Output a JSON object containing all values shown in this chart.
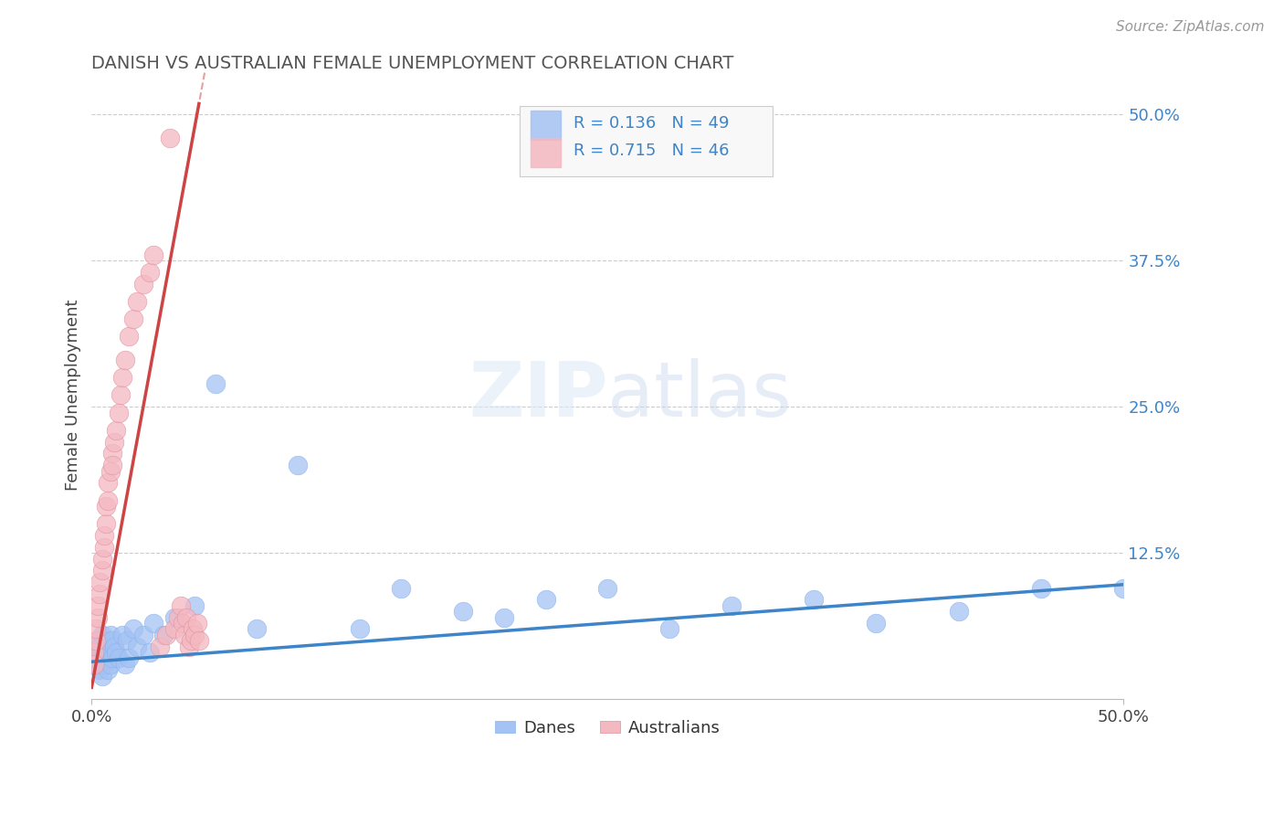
{
  "title": "DANISH VS AUSTRALIAN FEMALE UNEMPLOYMENT CORRELATION CHART",
  "source_text": "Source: ZipAtlas.com",
  "ylabel": "Female Unemployment",
  "right_yticklabels": [
    "",
    "12.5%",
    "25.0%",
    "37.5%",
    "50.0%"
  ],
  "right_ytick_vals": [
    0.0,
    0.125,
    0.25,
    0.375,
    0.5
  ],
  "legend_r1": "R = 0.136",
  "legend_n1": "N = 49",
  "legend_r2": "R = 0.715",
  "legend_n2": "N = 46",
  "blue_color": "#a4c2f4",
  "pink_color": "#f4b8c1",
  "blue_line_color": "#3d85c8",
  "pink_line_color": "#cc4444",
  "legend_text_color": "#3d85c8",
  "title_color": "#555555",
  "background_color": "#ffffff",
  "danes_x": [
    0.001,
    0.002,
    0.003,
    0.003,
    0.004,
    0.004,
    0.005,
    0.005,
    0.006,
    0.006,
    0.007,
    0.007,
    0.008,
    0.008,
    0.009,
    0.009,
    0.01,
    0.01,
    0.011,
    0.012,
    0.013,
    0.015,
    0.016,
    0.017,
    0.018,
    0.02,
    0.022,
    0.025,
    0.028,
    0.03,
    0.035,
    0.04,
    0.05,
    0.06,
    0.08,
    0.1,
    0.13,
    0.15,
    0.18,
    0.2,
    0.22,
    0.25,
    0.28,
    0.31,
    0.35,
    0.38,
    0.42,
    0.46,
    0.5
  ],
  "danes_y": [
    0.04,
    0.035,
    0.05,
    0.03,
    0.045,
    0.025,
    0.055,
    0.02,
    0.04,
    0.03,
    0.05,
    0.035,
    0.045,
    0.025,
    0.055,
    0.03,
    0.05,
    0.035,
    0.045,
    0.04,
    0.035,
    0.055,
    0.03,
    0.05,
    0.035,
    0.06,
    0.045,
    0.055,
    0.04,
    0.065,
    0.055,
    0.07,
    0.08,
    0.27,
    0.06,
    0.2,
    0.06,
    0.095,
    0.075,
    0.07,
    0.085,
    0.095,
    0.06,
    0.08,
    0.085,
    0.065,
    0.075,
    0.095,
    0.095
  ],
  "australians_x": [
    0.001,
    0.001,
    0.002,
    0.002,
    0.003,
    0.003,
    0.004,
    0.004,
    0.005,
    0.005,
    0.006,
    0.006,
    0.007,
    0.007,
    0.008,
    0.008,
    0.009,
    0.01,
    0.01,
    0.011,
    0.012,
    0.013,
    0.014,
    0.015,
    0.016,
    0.018,
    0.02,
    0.022,
    0.025,
    0.028,
    0.03,
    0.033,
    0.036,
    0.038,
    0.04,
    0.042,
    0.043,
    0.044,
    0.045,
    0.046,
    0.047,
    0.048,
    0.049,
    0.05,
    0.051,
    0.052
  ],
  "australians_y": [
    0.04,
    0.03,
    0.05,
    0.06,
    0.07,
    0.08,
    0.09,
    0.1,
    0.11,
    0.12,
    0.13,
    0.14,
    0.15,
    0.165,
    0.17,
    0.185,
    0.195,
    0.21,
    0.2,
    0.22,
    0.23,
    0.245,
    0.26,
    0.275,
    0.29,
    0.31,
    0.325,
    0.34,
    0.355,
    0.365,
    0.38,
    0.045,
    0.055,
    0.48,
    0.06,
    0.07,
    0.08,
    0.065,
    0.055,
    0.07,
    0.045,
    0.05,
    0.06,
    0.055,
    0.065,
    0.05
  ],
  "xlim": [
    0,
    0.5
  ],
  "ylim": [
    0,
    0.52
  ]
}
